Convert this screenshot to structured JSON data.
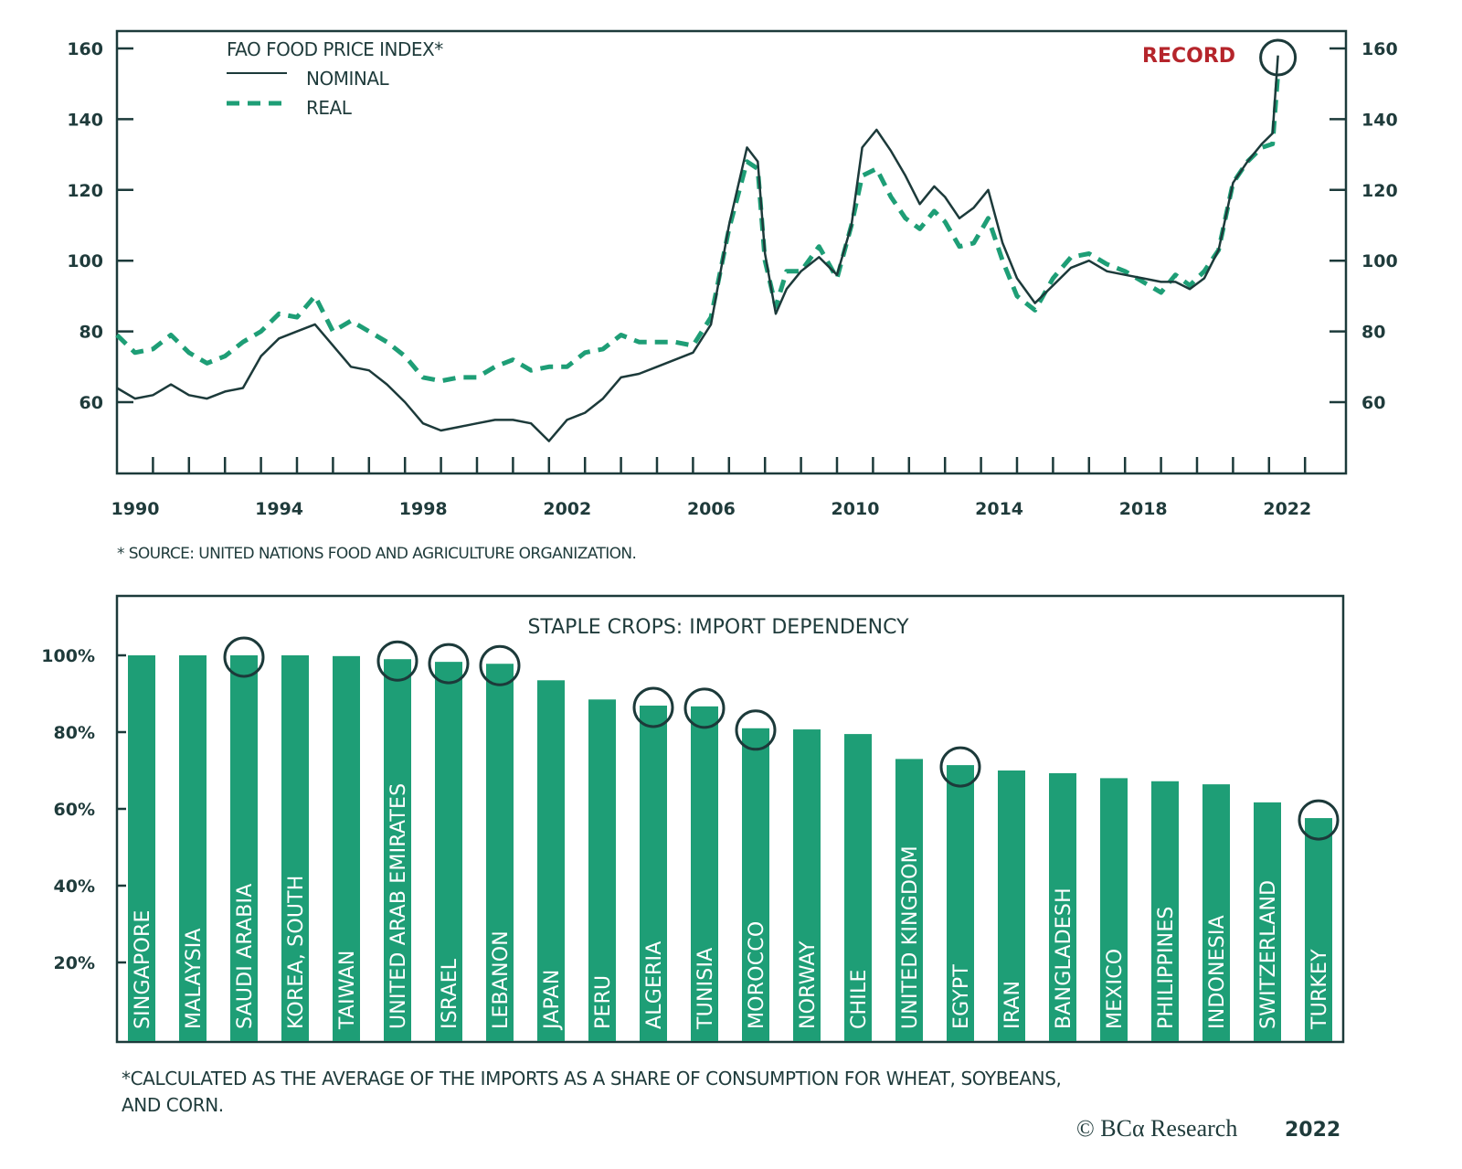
{
  "chart_data": [
    {
      "type": "line",
      "title": "FAO FOOD PRICE INDEX*",
      "annotation": "RECORD",
      "footnote": "* SOURCE: UNITED NATIONS FOOD AND AGRICULTURE ORGANIZATION.",
      "xlabel": "",
      "ylabel": "",
      "x_ticks": [
        "1990",
        "1994",
        "1998",
        "2002",
        "2006",
        "2010",
        "2014",
        "2018",
        "2022"
      ],
      "y_ticks_left": [
        "60",
        "80",
        "100",
        "120",
        "140",
        "160"
      ],
      "y_ticks_right": [
        "60",
        "80",
        "100",
        "120",
        "140",
        "160"
      ],
      "ylim": [
        40,
        165
      ],
      "xlim": [
        1990,
        2023.4
      ],
      "grid": false,
      "legend_position": "top-left",
      "colors": {
        "nominal": "#1c3a3a",
        "real": "#1e9e76",
        "record": "#b5252b",
        "axis": "#1c3a3a"
      },
      "x": [
        1990.0,
        1990.5,
        1991.0,
        1991.5,
        1992.0,
        1992.5,
        1993.0,
        1993.5,
        1994.0,
        1994.5,
        1995.0,
        1995.5,
        1996.0,
        1996.5,
        1997.0,
        1997.5,
        1998.0,
        1998.5,
        1999.0,
        1999.5,
        2000.0,
        2000.5,
        2001.0,
        2001.5,
        2002.0,
        2002.5,
        2003.0,
        2003.5,
        2004.0,
        2004.5,
        2005.0,
        2005.5,
        2006.0,
        2006.5,
        2007.0,
        2007.5,
        2007.8,
        2008.0,
        2008.3,
        2008.6,
        2009.0,
        2009.5,
        2010.0,
        2010.4,
        2010.7,
        2011.1,
        2011.5,
        2011.9,
        2012.3,
        2012.7,
        2013.0,
        2013.4,
        2013.8,
        2014.2,
        2014.6,
        2015.0,
        2015.5,
        2016.0,
        2016.5,
        2017.0,
        2017.5,
        2018.0,
        2018.5,
        2019.0,
        2019.4,
        2019.8,
        2020.2,
        2020.6,
        2021.0,
        2021.4,
        2021.8,
        2022.1,
        2022.25
      ],
      "series": [
        {
          "name": "NOMINAL",
          "style": "solid",
          "values": [
            64,
            61,
            62,
            65,
            62,
            61,
            63,
            64,
            73,
            78,
            80,
            82,
            76,
            70,
            69,
            65,
            60,
            54,
            52,
            53,
            54,
            55,
            55,
            54,
            49,
            55,
            57,
            61,
            67,
            68,
            70,
            72,
            74,
            82,
            110,
            132,
            128,
            102,
            85,
            92,
            97,
            101,
            96,
            110,
            132,
            137,
            131,
            124,
            116,
            121,
            118,
            112,
            115,
            120,
            105,
            95,
            88,
            93,
            98,
            100,
            97,
            96,
            95,
            94,
            94,
            92,
            95,
            103,
            122,
            128,
            133,
            136,
            158
          ]
        },
        {
          "name": "REAL",
          "style": "dashed",
          "values": [
            79,
            74,
            75,
            79,
            74,
            71,
            73,
            77,
            80,
            85,
            84,
            90,
            80,
            83,
            80,
            77,
            73,
            67,
            66,
            67,
            67,
            70,
            72,
            69,
            70,
            70,
            74,
            75,
            79,
            77,
            77,
            77,
            76,
            84,
            109,
            128,
            126,
            100,
            87,
            97,
            97,
            104,
            95,
            110,
            124,
            126,
            118,
            112,
            109,
            114,
            111,
            104,
            105,
            112,
            100,
            90,
            86,
            95,
            101,
            102,
            99,
            97,
            94,
            91,
            96,
            93,
            97,
            103,
            122,
            128,
            132,
            133,
            153
          ]
        }
      ]
    },
    {
      "type": "bar",
      "title": "STAPLE CROPS: IMPORT DEPENDENCY",
      "footnote_line1": "*CALCULATED AS THE AVERAGE OF THE IMPORTS AS A SHARE OF CONSUMPTION FOR WHEAT, SOYBEANS,",
      "footnote_line2": "AND CORN.",
      "xlabel": "",
      "ylabel": "",
      "ylim": [
        0,
        115
      ],
      "y_ticks": [
        "20%",
        "40%",
        "60%",
        "80%",
        "100%"
      ],
      "y_tick_values": [
        20,
        40,
        60,
        80,
        100
      ],
      "grid": false,
      "bar_color": "#1e9e76",
      "categories": [
        "SINGAPORE",
        "MALAYSIA",
        "SAUDI ARABIA",
        "KOREA, SOUTH",
        "TAIWAN",
        "UNITED ARAB EMIRATES",
        "ISRAEL",
        "LEBANON",
        "JAPAN",
        "PERU",
        "ALGERIA",
        "TUNISIA",
        "MOROCCO",
        "NORWAY",
        "CHILE",
        "UNITED KINGDOM",
        "EGYPT",
        "IRAN",
        "BANGLADESH",
        "MEXICO",
        "PHILIPPINES",
        "INDONESIA",
        "SWITZERLAND",
        "TURKEY"
      ],
      "values": [
        100,
        100,
        100,
        100,
        99.8,
        99,
        98.3,
        97.8,
        93.5,
        88.5,
        86.9,
        86.7,
        81,
        80.7,
        79.5,
        73,
        71.4,
        70,
        69.3,
        68,
        67.2,
        66.4,
        61.7,
        57.6
      ],
      "circled": [
        "SAUDI ARABIA",
        "UNITED ARAB EMIRATES",
        "ISRAEL",
        "LEBANON",
        "ALGERIA",
        "TUNISIA",
        "MOROCCO",
        "EGYPT",
        "TURKEY"
      ]
    }
  ],
  "copyright": {
    "brand": "© BCα Research",
    "year": "2022"
  }
}
